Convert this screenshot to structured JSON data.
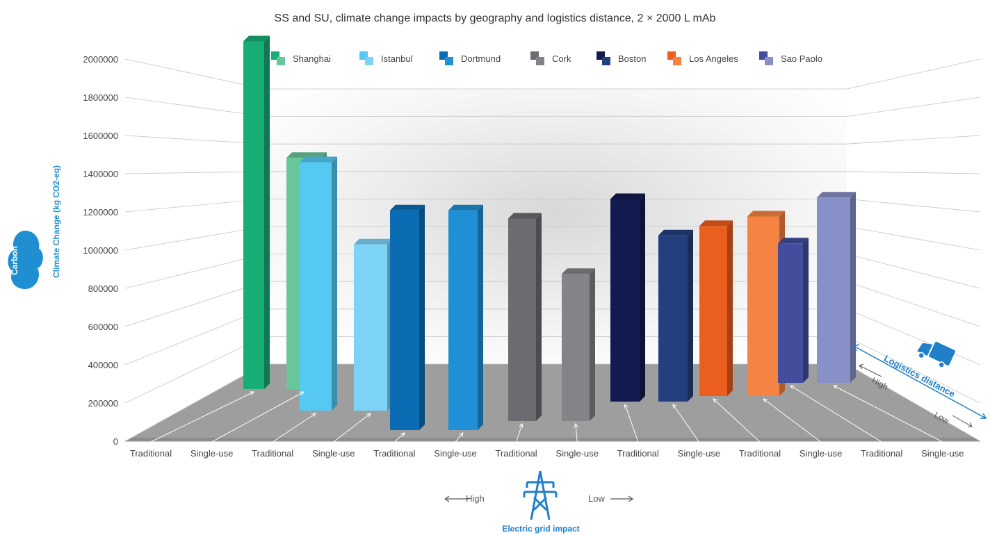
{
  "chart_data": {
    "type": "bar",
    "title": "SS and SU, climate change impacts by geography and logistics distance, 2 × 2000 L mAb",
    "ylabel": "Climate Change (kg CO2-eq)",
    "ylabel_icon_text": "Carbon",
    "ylim": [
      0,
      2000000
    ],
    "yticks": [
      "0",
      "200000",
      "400000",
      "600000",
      "800000",
      "1000000",
      "1200000",
      "1400000",
      "1600000",
      "1800000",
      "2000000"
    ],
    "x_tick_labels": [
      "Traditional",
      "Single-use",
      "Traditional",
      "Single-use",
      "Traditional",
      "Single-use",
      "Traditional",
      "Single-use",
      "Traditional",
      "Single-use",
      "Traditional",
      "Single-use",
      "Traditional",
      "Single-use"
    ],
    "grid": true,
    "legend_position": "top",
    "series": [
      {
        "name": "Shanghai",
        "values": [
          1820000,
          1210000
        ],
        "colors": [
          "#17ad74",
          "#68c79a"
        ]
      },
      {
        "name": "Istanbul",
        "values": [
          1300000,
          870000
        ],
        "colors": [
          "#56c9f3",
          "#7dd3f5"
        ]
      },
      {
        "name": "Dortmund",
        "values": [
          1150000,
          1150000
        ],
        "colors": [
          "#0a6db3",
          "#1f90d6"
        ]
      },
      {
        "name": "Cork",
        "values": [
          1060000,
          770000
        ],
        "colors": [
          "#6b6c70",
          "#838488"
        ]
      },
      {
        "name": "Boston",
        "values": [
          1060000,
          870000
        ],
        "colors": [
          "#131a4f",
          "#233f7e"
        ]
      },
      {
        "name": "Los Angeles",
        "values": [
          890000,
          940000
        ],
        "colors": [
          "#ea5e1e",
          "#f58442"
        ]
      },
      {
        "name": "Sao Paolo",
        "values": [
          730000,
          970000
        ],
        "colors": [
          "#434d9c",
          "#8890c8"
        ]
      }
    ]
  },
  "annotations": {
    "electric_grid_label": "Electric grid impact",
    "grid_high": "High",
    "grid_low": "Low",
    "logistics_label": "Logistics distance",
    "logistics_high": "High",
    "logistics_low": "Low"
  }
}
